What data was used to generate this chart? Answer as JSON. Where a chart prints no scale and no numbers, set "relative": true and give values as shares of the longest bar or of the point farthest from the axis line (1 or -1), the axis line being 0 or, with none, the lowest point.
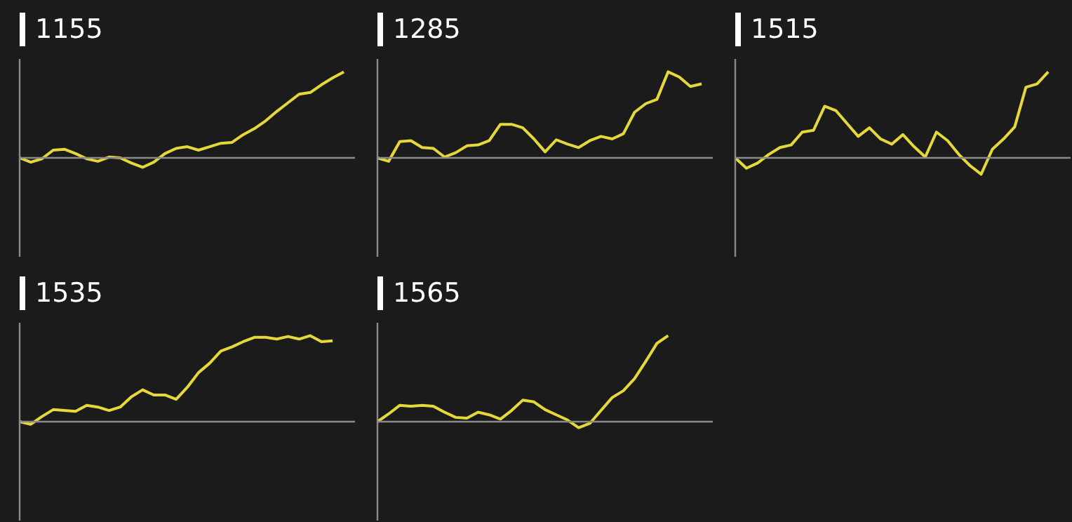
{
  "chart_data": [
    {
      "type": "line",
      "title": "1155",
      "relative": true,
      "color": "#e6d83a",
      "categories": [
        null,
        null,
        null,
        null,
        null,
        null,
        null,
        null,
        null,
        null,
        null,
        null,
        null,
        null,
        null,
        null,
        null,
        null,
        null,
        null,
        null,
        null,
        null,
        null,
        null,
        null,
        null,
        null,
        null,
        null,
        null
      ],
      "values": [
        0,
        -0.05,
        -0.01,
        0.09,
        0.1,
        0.05,
        -0.01,
        -0.04,
        0.01,
        0,
        -0.06,
        -0.11,
        -0.05,
        0.05,
        0.11,
        0.13,
        0.09,
        0.13,
        0.17,
        0.18,
        0.27,
        0.34,
        0.43,
        0.54,
        0.64,
        0.74,
        0.76,
        0.85,
        0.93,
        1,
        null
      ]
    },
    {
      "type": "line",
      "title": "1285",
      "relative": true,
      "color": "#e6d83a",
      "categories": [
        null,
        null,
        null,
        null,
        null,
        null,
        null,
        null,
        null,
        null,
        null,
        null,
        null,
        null,
        null,
        null,
        null,
        null,
        null,
        null,
        null,
        null,
        null,
        null,
        null,
        null,
        null,
        null,
        null,
        null,
        null
      ],
      "values": [
        0,
        -0.04,
        0.19,
        0.2,
        0.12,
        0.11,
        0.01,
        0.06,
        0.14,
        0.15,
        0.2,
        0.39,
        0.39,
        0.35,
        0.22,
        0.07,
        0.21,
        0.16,
        0.12,
        0.2,
        0.25,
        0.22,
        0.28,
        0.53,
        0.63,
        0.68,
        1,
        0.94,
        0.83,
        0.86,
        null
      ]
    },
    {
      "type": "line",
      "title": "1515",
      "relative": true,
      "color": "#e6d83a",
      "categories": [
        null,
        null,
        null,
        null,
        null,
        null,
        null,
        null,
        null,
        null,
        null,
        null,
        null,
        null,
        null,
        null,
        null,
        null,
        null,
        null,
        null,
        null,
        null,
        null,
        null,
        null,
        null,
        null,
        null,
        null,
        null
      ],
      "values": [
        0,
        -0.12,
        -0.06,
        0.04,
        0.12,
        0.15,
        0.3,
        0.32,
        0.6,
        0.55,
        0.4,
        0.25,
        0.35,
        0.22,
        0.16,
        0.27,
        0.13,
        0.01,
        0.3,
        0.2,
        0.04,
        -0.09,
        -0.19,
        0.1,
        0.22,
        0.36,
        0.82,
        0.86,
        1,
        null,
        null
      ]
    },
    {
      "type": "line",
      "title": "1535",
      "relative": true,
      "color": "#e6d83a",
      "categories": [
        null,
        null,
        null,
        null,
        null,
        null,
        null,
        null,
        null,
        null,
        null,
        null,
        null,
        null,
        null,
        null,
        null,
        null,
        null,
        null,
        null,
        null,
        null,
        null,
        null,
        null,
        null,
        null,
        null,
        null,
        null
      ],
      "values": [
        0,
        -0.03,
        0.06,
        0.14,
        0.13,
        0.12,
        0.19,
        0.17,
        0.13,
        0.17,
        0.29,
        0.37,
        0.31,
        0.31,
        0.26,
        0.4,
        0.57,
        0.68,
        0.82,
        0.87,
        0.93,
        0.98,
        0.98,
        0.96,
        0.99,
        0.96,
        1,
        0.93,
        0.94,
        null,
        null
      ]
    },
    {
      "type": "line",
      "title": "1565",
      "relative": true,
      "color": "#e6d83a",
      "categories": [
        null,
        null,
        null,
        null,
        null,
        null,
        null,
        null,
        null,
        null,
        null,
        null,
        null,
        null,
        null,
        null,
        null,
        null,
        null,
        null,
        null,
        null,
        null,
        null,
        null,
        null,
        null,
        null,
        null,
        null,
        null
      ],
      "values": [
        0,
        0.09,
        0.19,
        0.18,
        0.19,
        0.18,
        0.11,
        0.05,
        0.04,
        0.11,
        0.08,
        0.03,
        0.13,
        0.25,
        0.23,
        0.14,
        0.08,
        0.02,
        -0.07,
        -0.02,
        0.13,
        0.28,
        0.36,
        0.5,
        0.7,
        0.91,
        1,
        null,
        null,
        null,
        null
      ]
    }
  ]
}
